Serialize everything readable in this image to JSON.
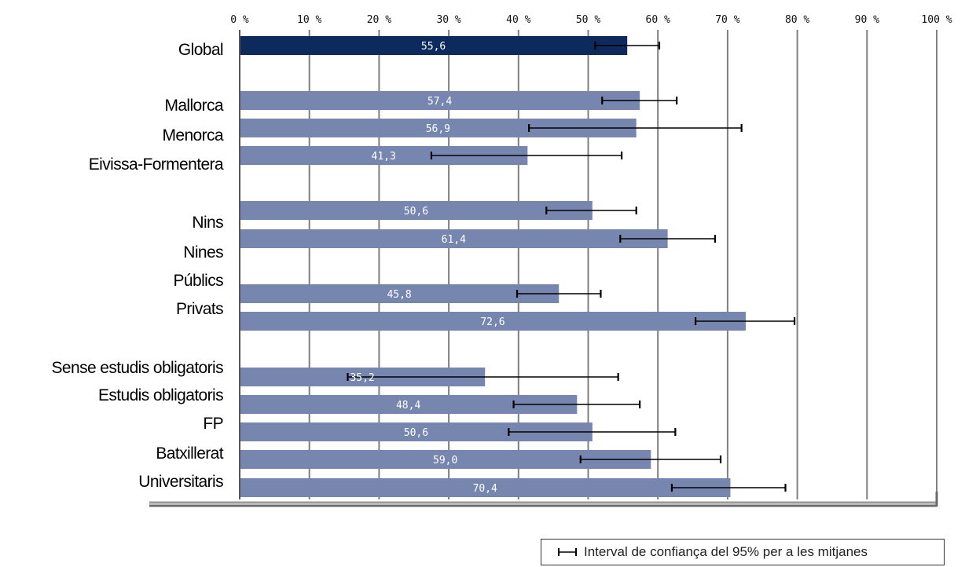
{
  "chart_data": {
    "type": "bar",
    "orientation": "horizontal",
    "title": "",
    "xlabel": "",
    "ylabel": "",
    "xlim": [
      0,
      100
    ],
    "x_ticks": [
      "0 %",
      "10 %",
      "20 %",
      "30 %",
      "40 %",
      "50 %",
      "60 %",
      "70 %",
      "80 %",
      "90 %",
      "100 %"
    ],
    "grid": true,
    "colors": {
      "highlight": "#0e2a5c",
      "bar": "#7686ae",
      "error_bar": "#000000",
      "grid": "#7f7f7f"
    },
    "categories": [
      {
        "label": "Global",
        "value": 55.6,
        "value_label": "55,6",
        "ci": [
          51.0,
          60.2
        ],
        "highlight": true
      },
      {
        "label": "Mallorca",
        "value": 57.4,
        "value_label": "57,4",
        "ci": [
          52.0,
          62.7
        ]
      },
      {
        "label": "Menorca",
        "value": 56.9,
        "value_label": "56,9",
        "ci": [
          41.5,
          72.0
        ]
      },
      {
        "label": "Eivissa-Formentera",
        "value": 41.3,
        "value_label": "41,3",
        "ci": [
          27.5,
          54.8
        ]
      },
      {
        "label": "Nins",
        "value": 50.6,
        "value_label": "50,6",
        "ci": [
          44.0,
          56.9
        ]
      },
      {
        "label": "Nines",
        "value": 61.4,
        "value_label": "61,4",
        "ci": [
          54.6,
          68.2
        ]
      },
      {
        "label": "Públics",
        "value": 45.8,
        "value_label": "45,8",
        "ci": [
          39.8,
          51.8
        ]
      },
      {
        "label": "Privats",
        "value": 72.6,
        "value_label": "72,6",
        "ci": [
          65.4,
          79.6
        ]
      },
      {
        "label": "Sense estudis obligatoris",
        "value": 35.2,
        "value_label": "35,2",
        "ci": [
          15.5,
          54.3
        ]
      },
      {
        "label": "Estudis obligatoris",
        "value": 48.4,
        "value_label": "48,4",
        "ci": [
          39.3,
          57.4
        ]
      },
      {
        "label": "FP",
        "value": 50.6,
        "value_label": "50,6",
        "ci": [
          38.6,
          62.5
        ]
      },
      {
        "label": "Batxillerat",
        "value": 59.0,
        "value_label": "59,0",
        "ci": [
          48.9,
          69.0
        ]
      },
      {
        "label": "Universitaris",
        "value": 70.4,
        "value_label": "70,4",
        "ci": [
          62.0,
          78.3
        ]
      }
    ],
    "legend": {
      "text": "Interval de confiança del 95% per a les mitjanes",
      "placement": "bottom-right"
    }
  }
}
